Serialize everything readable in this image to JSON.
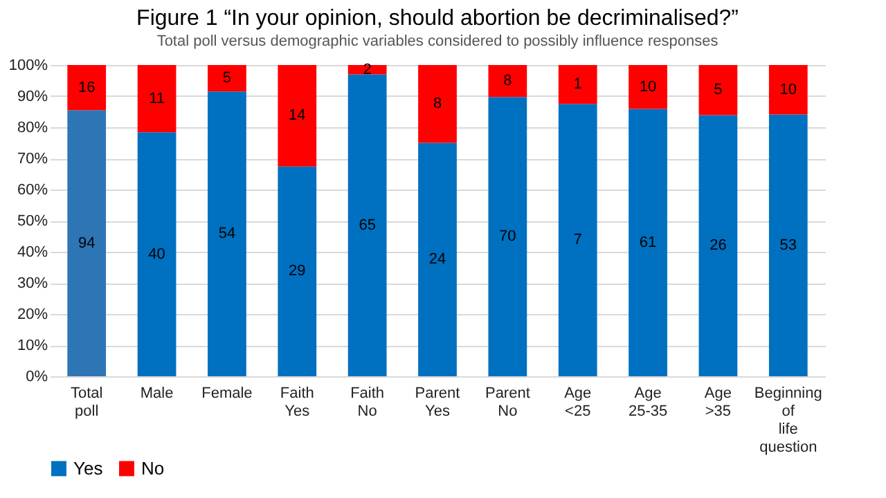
{
  "chart_data": {
    "type": "bar",
    "title": "Figure 1        “In your opinion, should abortion be decriminalised?”",
    "subtitle": "Total poll versus demographic variables considered to possibly influence responses",
    "categories": [
      "Total poll",
      "Male",
      "Female",
      "Faith Yes",
      "Faith No",
      "Parent Yes",
      "Parent No",
      "Age <25",
      "Age 25-35",
      "Age >35",
      "Beginning of life question"
    ],
    "stacked": true,
    "ylim": [
      0,
      100
    ],
    "yticks": [
      {
        "value": 0,
        "label": "0%"
      },
      {
        "value": 10,
        "label": "10%"
      },
      {
        "value": 20,
        "label": "20%"
      },
      {
        "value": 30,
        "label": "30%"
      },
      {
        "value": 40,
        "label": "40%"
      },
      {
        "value": 50,
        "label": "50%"
      },
      {
        "value": 60,
        "label": "60%"
      },
      {
        "value": 70,
        "label": "70%"
      },
      {
        "value": 80,
        "label": "80%"
      },
      {
        "value": 90,
        "label": "90%"
      },
      {
        "value": 100,
        "label": "100%"
      }
    ],
    "grid": "y",
    "legend": "bottom",
    "series": [
      {
        "name": "Yes",
        "color": "#0070c0",
        "colors": [
          "#2e75b6",
          "#0070c0",
          "#0070c0",
          "#0070c0",
          "#0070c0",
          "#0070c0",
          "#0070c0",
          "#0070c0",
          "#0070c0",
          "#0070c0",
          "#0070c0"
        ],
        "values": [
          85.5,
          78.4,
          91.5,
          67.4,
          97.0,
          75.0,
          89.7,
          87.5,
          85.9,
          83.9,
          84.1
        ]
      },
      {
        "name": "No",
        "color": "#ff0000",
        "values": [
          14.5,
          21.6,
          8.5,
          32.6,
          3.0,
          25.0,
          10.3,
          12.5,
          14.1,
          16.1,
          15.9
        ]
      }
    ],
    "annotations": [
      "94",
      "40",
      "54",
      "29",
      "65",
      "24",
      "70",
      "7",
      "61",
      "26",
      "53",
      "16",
      "11",
      "5",
      "14",
      "2",
      "8",
      "8",
      "1",
      "10",
      "5",
      "10"
    ]
  }
}
